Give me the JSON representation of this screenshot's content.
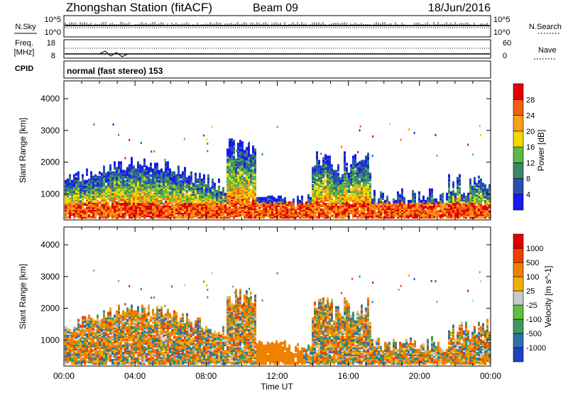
{
  "chart_data": [
    {
      "type": "line",
      "header": {
        "title": "Zhongshan Station (fitACF)",
        "beam": "Beam 09",
        "date": "18/Jun/2016"
      },
      "left_label": "N.Sky",
      "right_label": "N.Search",
      "left_ticks": [
        "10^5",
        "10^0"
      ],
      "right_ticks": [
        "10^5",
        "10^0"
      ],
      "series": [
        {
          "name": "N.Sky",
          "style": "solid"
        },
        {
          "name": "N.Search",
          "style": "dotted"
        }
      ]
    },
    {
      "type": "line",
      "left_label_lines": [
        "Freq.",
        "[MHz]"
      ],
      "right_label": "Nave",
      "left_ticks": [
        "18",
        "8"
      ],
      "right_ticks": [
        "60",
        "0"
      ],
      "series": [
        {
          "name": "Freq.",
          "style": "solid"
        },
        {
          "name": "Nave",
          "style": "dotted"
        }
      ]
    },
    {
      "type": "text",
      "label": "CPID",
      "mode_text": "normal (fast stereo) 153"
    },
    {
      "type": "heatmap",
      "quantity": "Power",
      "ylabel": "Slant Range [km]",
      "ylim": [
        180,
        4560
      ],
      "yticks": [
        1000,
        2000,
        3000,
        4000
      ],
      "colorbar_label": "Power [dB]",
      "colorbar_ticks": [
        "4",
        "8",
        "12",
        "16",
        "20",
        "24",
        "28"
      ],
      "colors": [
        "#1818f0",
        "#2850b0",
        "#3c8868",
        "#5cb848",
        "#f0d800",
        "#f8a018",
        "#f06010",
        "#e00000"
      ]
    },
    {
      "type": "heatmap",
      "quantity": "Velocity",
      "ylabel": "Slant Range [km]",
      "ylim": [
        180,
        4560
      ],
      "yticks": [
        1000,
        2000,
        3000,
        4000
      ],
      "colorbar_label": "Velocity [m s^-1]",
      "colorbar_ticks": [
        "1000",
        "500",
        "100",
        "25",
        "-25",
        "-100",
        "-500",
        "-1000"
      ],
      "colors": [
        "#2040c0",
        "#3070a8",
        "#3e9a60",
        "#60c040",
        "#c8c8c8",
        "#f0b000",
        "#f08000",
        "#f04000",
        "#e00000"
      ],
      "xlabel": "Time UT",
      "xticks": [
        "00:00",
        "04:00",
        "08:00",
        "12:00",
        "16:00",
        "20:00",
        "00:00"
      ]
    }
  ]
}
